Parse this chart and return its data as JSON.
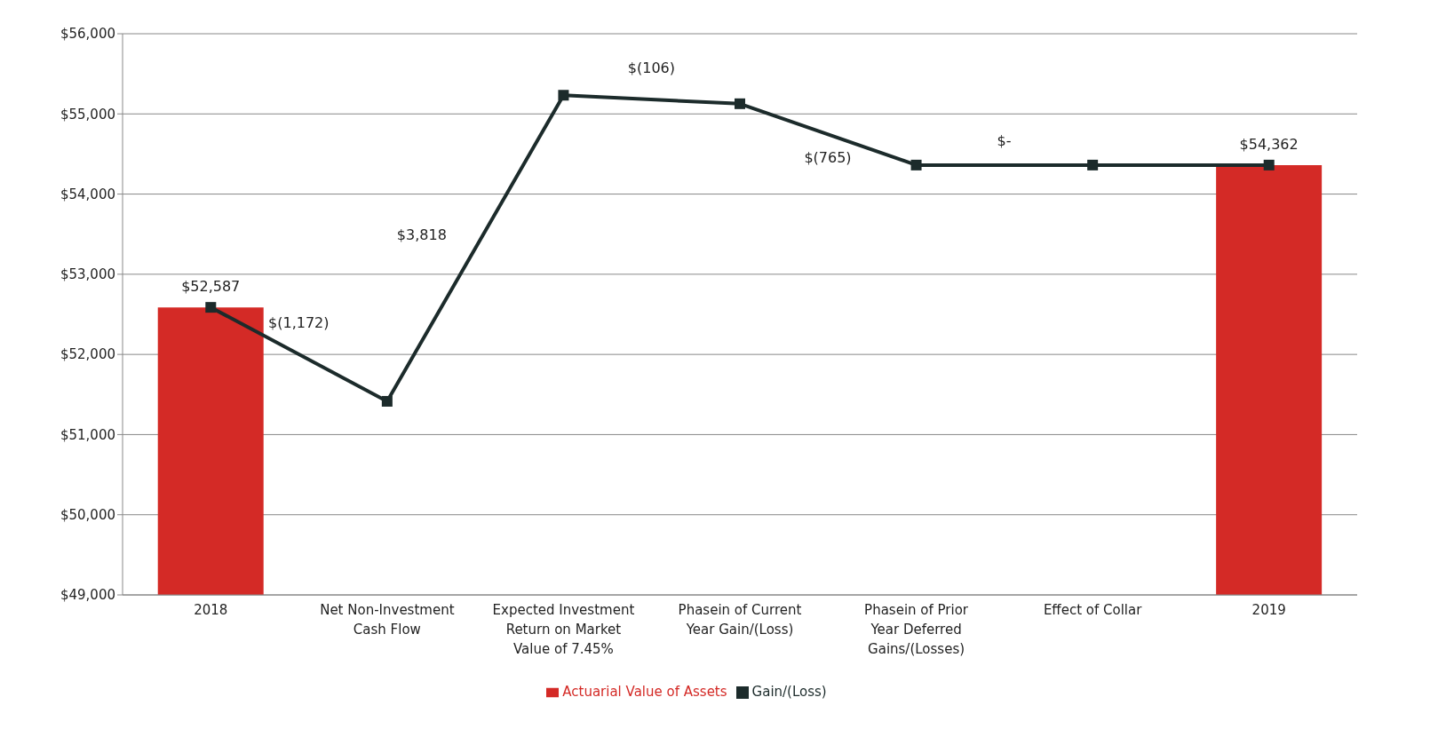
{
  "chart_data": {
    "type": "bar",
    "categories": [
      "2018",
      "Net Non-Investment Cash Flow",
      "Expected Investment Return on Market Value of 7.45%",
      "Phasein of Current Year Gain/(Loss)",
      "Phasein of Prior Year Deferred Gains/(Losses)",
      "Effect of Collar",
      "2019"
    ],
    "series": [
      {
        "name": "Actuarial Value of Assets",
        "color": "#d42a26",
        "values": [
          52587,
          null,
          null,
          null,
          null,
          null,
          54362
        ],
        "value_labels": [
          "$52,587",
          null,
          null,
          null,
          null,
          null,
          "$54,362"
        ]
      },
      {
        "name": "Gain/(Loss)",
        "type": "line",
        "color": "#1c2b2b",
        "marker": "square",
        "values": [
          52587,
          51415,
          55233,
          55127,
          54362,
          54362,
          54362
        ]
      }
    ],
    "annotations": [
      "$(1,172)",
      "$3,818",
      "$(106)",
      "$(765)",
      "$-"
    ],
    "ylim": [
      49000,
      56000
    ],
    "yticks": [
      {
        "value": 49000,
        "label": "$49,000"
      },
      {
        "value": 50000,
        "label": "$50,000"
      },
      {
        "value": 51000,
        "label": "$51,000"
      },
      {
        "value": 52000,
        "label": "$52,000"
      },
      {
        "value": 53000,
        "label": "$53,000"
      },
      {
        "value": 54000,
        "label": "$54,000"
      },
      {
        "value": 55000,
        "label": "$55,000"
      },
      {
        "value": 56000,
        "label": "$56,000"
      }
    ],
    "grid": "y",
    "legend": "bottom"
  }
}
